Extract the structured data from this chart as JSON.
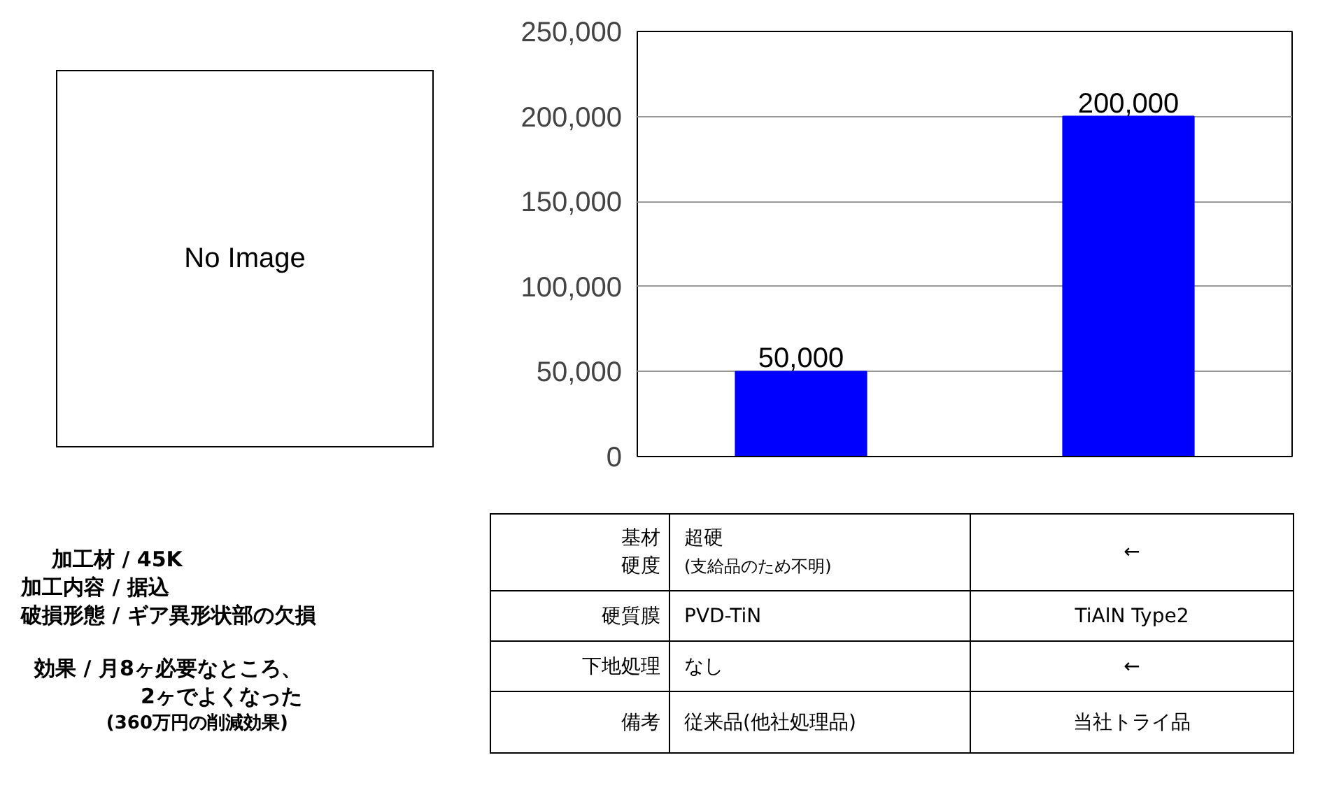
{
  "chart_data": {
    "type": "bar",
    "categories": [
      null,
      null
    ],
    "values": [
      50000,
      200000
    ],
    "color": "#0000ff",
    "value_labels": [
      "50,000",
      "200,000"
    ],
    "ylim": [
      0,
      250000
    ],
    "yticks": [
      {
        "value": 0,
        "label": "0"
      },
      {
        "value": 50000,
        "label": "50,000"
      },
      {
        "value": 100000,
        "label": "100,000"
      },
      {
        "value": 150000,
        "label": "150,000"
      },
      {
        "value": 200000,
        "label": "200,000"
      },
      {
        "value": 250000,
        "label": "250,000"
      }
    ],
    "grid": "y",
    "annotations": [
      "No Image",
      "加工材 / 45K",
      "加工内容 / 据込",
      "破損形態 / ギア異形状部の欠損",
      "効果 / 月8ヶ必要なところ、",
      "2ヶでよくなった",
      "(360万円の削減効果)",
      "基材",
      "硬度",
      "超硬",
      "(支給品のため不明)",
      "←",
      "硬質膜",
      "PVD-TiN",
      "TiAlN Type2",
      "下地処理",
      "なし",
      "←",
      "備考",
      "従来品(他社処理品)",
      "当社トライ品"
    ]
  }
}
